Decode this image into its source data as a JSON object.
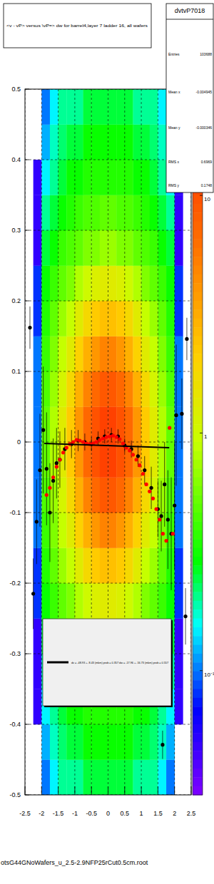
{
  "chart_data": {
    "type": "heatmap",
    "title": "<v - vP>       versus  \\vP=> dw for barrel4,layer 7 ladder 16, all wafers",
    "xlim": [
      -2.5,
      2.5
    ],
    "xticks": [
      -2.5,
      -2,
      -1.5,
      -1,
      -0.5,
      0,
      0.5,
      1,
      1.5,
      2,
      2.5
    ],
    "ylim": [
      -0.5,
      0.5
    ],
    "yticks": [
      -0.5,
      -0.4,
      -0.3,
      -0.2,
      -0.1,
      0,
      0.1,
      0.2,
      0.3,
      0.4,
      0.5
    ],
    "grid": true,
    "legend": "bottom",
    "heatmap": {
      "xbins": [
        -2.5,
        -2.25,
        -2,
        -1.75,
        -1.5,
        -1.25,
        -1,
        -0.75,
        -0.5,
        -0.25,
        0,
        0.25,
        0.5,
        0.75,
        1,
        1.25,
        1.5,
        1.75,
        2,
        2.25,
        2.5
      ],
      "ybins": [
        -0.5,
        -0.45,
        -0.4,
        -0.35,
        -0.3,
        -0.25,
        -0.2,
        -0.15,
        -0.1,
        -0.05,
        0,
        0.05,
        0.1,
        0.15,
        0.2,
        0.25,
        0.3,
        0.35,
        0.4,
        0.45,
        0.5
      ],
      "cells": [
        [
          0,
          0,
          0.1,
          0.15,
          0.2,
          0.2,
          0.2,
          0.25,
          0.25,
          0.25,
          0.25,
          0.25,
          0.25,
          0.2,
          0.2,
          0.2,
          0.15,
          0.1,
          0,
          0
        ],
        [
          0,
          0,
          0.12,
          0.18,
          0.22,
          0.25,
          0.25,
          0.3,
          0.3,
          0.3,
          0.3,
          0.3,
          0.3,
          0.25,
          0.25,
          0.22,
          0.18,
          0.12,
          0,
          0
        ],
        [
          0,
          0.05,
          0.15,
          0.2,
          0.25,
          0.3,
          0.3,
          0.35,
          0.35,
          0.35,
          0.35,
          0.35,
          0.35,
          0.3,
          0.3,
          0.25,
          0.2,
          0.15,
          0.05,
          0
        ],
        [
          0,
          0.05,
          0.2,
          0.25,
          0.3,
          0.35,
          0.4,
          0.45,
          0.45,
          0.5,
          0.5,
          0.45,
          0.45,
          0.4,
          0.35,
          0.3,
          0.25,
          0.2,
          0.05,
          0
        ],
        [
          0,
          0.05,
          0.25,
          0.3,
          0.4,
          0.45,
          0.5,
          0.6,
          0.6,
          0.7,
          0.7,
          0.6,
          0.6,
          0.5,
          0.45,
          0.4,
          0.3,
          0.25,
          0.05,
          0
        ],
        [
          0,
          0.08,
          0.3,
          0.4,
          0.5,
          0.6,
          0.8,
          1,
          1.2,
          1.3,
          1.3,
          1.2,
          1,
          0.8,
          0.6,
          0.5,
          0.4,
          0.3,
          0.08,
          0
        ],
        [
          0,
          0.08,
          0.35,
          0.5,
          0.7,
          0.9,
          1.3,
          1.8,
          2.2,
          2.5,
          2.5,
          2.2,
          1.8,
          1.3,
          0.9,
          0.7,
          0.5,
          0.35,
          0.08,
          0
        ],
        [
          0,
          0.1,
          0.4,
          0.6,
          0.9,
          1.3,
          2,
          3,
          4,
          5,
          5,
          4,
          3,
          2,
          1.3,
          0.9,
          0.6,
          0.4,
          0.1,
          0
        ],
        [
          0,
          0.1,
          0.45,
          0.7,
          1.1,
          1.8,
          3,
          5,
          7,
          9,
          9,
          7,
          5,
          3,
          1.8,
          1.1,
          0.7,
          0.45,
          0.1,
          0
        ],
        [
          0,
          0.1,
          0.5,
          0.8,
          1.3,
          2.2,
          4,
          7,
          10,
          13,
          13,
          10,
          7,
          4,
          2.2,
          1.3,
          0.8,
          0.5,
          0.1,
          0
        ],
        [
          0,
          0.1,
          0.5,
          0.8,
          1.3,
          2.2,
          4,
          7,
          10,
          13,
          13,
          10,
          7,
          4,
          2.2,
          1.3,
          0.8,
          0.5,
          0.1,
          0
        ],
        [
          0,
          0.1,
          0.45,
          0.7,
          1.1,
          1.8,
          3,
          5,
          7,
          9,
          9,
          7,
          5,
          3,
          1.8,
          1.1,
          0.7,
          0.45,
          0.1,
          0
        ],
        [
          0,
          0.1,
          0.4,
          0.6,
          0.9,
          1.3,
          2,
          3,
          4,
          5,
          5,
          4,
          3,
          2,
          1.3,
          0.9,
          0.6,
          0.4,
          0.1,
          0
        ],
        [
          0,
          0.08,
          0.35,
          0.5,
          0.7,
          0.9,
          1.3,
          1.8,
          2.2,
          2.5,
          2.5,
          2.2,
          1.8,
          1.3,
          0.9,
          0.7,
          0.5,
          0.35,
          0.08,
          0
        ],
        [
          0,
          0.08,
          0.3,
          0.4,
          0.5,
          0.6,
          0.8,
          1,
          1.2,
          1.3,
          1.3,
          1.2,
          1,
          0.8,
          0.6,
          0.5,
          0.4,
          0.3,
          0.08,
          0
        ],
        [
          0,
          0.05,
          0.25,
          0.3,
          0.4,
          0.45,
          0.5,
          0.6,
          0.6,
          0.7,
          0.7,
          0.6,
          0.6,
          0.5,
          0.45,
          0.4,
          0.3,
          0.25,
          0.05,
          0
        ],
        [
          0,
          0.05,
          0.2,
          0.25,
          0.3,
          0.35,
          0.4,
          0.45,
          0.45,
          0.5,
          0.5,
          0.45,
          0.45,
          0.4,
          0.35,
          0.3,
          0.25,
          0.2,
          0.05,
          0
        ],
        [
          0,
          0.05,
          0.15,
          0.2,
          0.25,
          0.3,
          0.3,
          0.35,
          0.35,
          0.35,
          0.35,
          0.35,
          0.35,
          0.3,
          0.3,
          0.25,
          0.2,
          0.15,
          0.05,
          0
        ],
        [
          0,
          0,
          0.12,
          0.18,
          0.22,
          0.25,
          0.25,
          0.3,
          0.3,
          0.3,
          0.3,
          0.3,
          0.3,
          0.25,
          0.25,
          0.22,
          0.18,
          0.12,
          0,
          0
        ],
        [
          0,
          0,
          0.1,
          0.15,
          0.2,
          0.2,
          0.2,
          0.25,
          0.25,
          0.25,
          0.25,
          0.25,
          0.25,
          0.2,
          0.2,
          0.2,
          0.15,
          0.1,
          0,
          0
        ]
      ],
      "zlim": [
        0.03,
        28
      ],
      "zticks": [
        {
          "value": 0.1,
          "label": "10⁻¹"
        },
        1,
        10
      ]
    },
    "series": [
      {
        "type": "scatter",
        "color": "#000000",
        "marker": "circle",
        "x": [
          -2.35,
          -2.25,
          -2.15,
          -2.05,
          -1.95,
          -1.85,
          -1.75,
          -1.65,
          -1.55,
          -1.45,
          -1.3,
          -1.1,
          -0.9,
          -0.7,
          -0.5,
          -0.3,
          -0.1,
          0.1,
          0.3,
          0.5,
          0.7,
          0.9,
          1.1,
          1.3,
          1.5,
          1.6,
          1.64,
          1.7,
          1.8,
          1.9,
          2.0,
          2.05,
          2.22,
          2.33,
          2.37
        ],
        "values": [
          0.162,
          -0.215,
          -0.113,
          -0.04,
          0.017,
          -0.038,
          -0.1,
          -0.055,
          -0.03,
          -0.025,
          -0.01,
          -0.003,
          0.002,
          0,
          -0.003,
          0.005,
          0.008,
          0.01,
          0.008,
          -0.005,
          -0.01,
          -0.02,
          -0.04,
          -0.065,
          -0.095,
          -0.105,
          -0.429,
          -0.06,
          -0.11,
          -0.13,
          -0.09,
          0.038,
          0.04,
          -0.247,
          0.146
        ],
        "errors": [
          0.03,
          0.05,
          0.06,
          0.08,
          0.09,
          0.08,
          0.07,
          0.06,
          0.05,
          0.04,
          0.03,
          0.02,
          0.015,
          0.012,
          0.01,
          0.01,
          0.01,
          0.01,
          0.01,
          0.01,
          0.012,
          0.015,
          0.02,
          0.03,
          0.04,
          0.05,
          0.02,
          0.06,
          0.07,
          0.08,
          0.09,
          0.1,
          0.05,
          0.04,
          0.03
        ]
      },
      {
        "type": "scatter",
        "color": "#ff0000",
        "marker": "circle",
        "x": [
          -1.85,
          -1.75,
          -1.65,
          -1.55,
          -1.45,
          -1.35,
          -1.25,
          -1.15,
          -1.05,
          -0.95,
          -0.85,
          -0.75,
          -0.65,
          -0.55,
          -0.45,
          -0.35,
          -0.25,
          -0.15,
          -0.05,
          0.05,
          0.15,
          0.25,
          0.35,
          0.45,
          0.55,
          0.65,
          0.75,
          0.85,
          0.95,
          1.05,
          1.15,
          1.25,
          1.35,
          1.45,
          1.55,
          1.65,
          1.75,
          1.85,
          1.95
        ],
        "values": [
          -0.075,
          -0.065,
          -0.05,
          -0.035,
          -0.025,
          -0.015,
          -0.008,
          -0.003,
          0,
          0.003,
          0.002,
          0,
          -0.002,
          -0.003,
          -0.002,
          0,
          0.003,
          0.005,
          0.007,
          0.008,
          0.009,
          0.007,
          0.004,
          -0.002,
          -0.008,
          -0.012,
          -0.018,
          -0.025,
          -0.033,
          -0.045,
          -0.06,
          -0.07,
          -0.08,
          -0.095,
          -0.11,
          -0.13,
          -0.14,
          0.02,
          -0.13
        ]
      },
      {
        "type": "line",
        "color": "#000000",
        "line_style": "solid",
        "name": "dv = -48.93 +- 8.43 (mkm) prob = 0.357 dw = -17.96 +- 16.73 (mkm) prob = 0.557",
        "x": [
          -1.92,
          1.84
        ],
        "values": [
          -0.002,
          -0.008
        ]
      }
    ],
    "stats": {
      "title": "dvtvP7018",
      "rows": [
        {
          "label": "Entries",
          "value": 103688
        },
        {
          "label": "Mean x",
          "value": -0.004945
        },
        {
          "label": "Mean y",
          "value": -0.000346
        },
        {
          "label": "RMS x",
          "value": 0.6969
        },
        {
          "label": "RMS y",
          "value": 0.1748
        }
      ]
    },
    "footer": "otsG44GNoWafers_u_2.5-2.9NFP25rCut0.5cm.root"
  }
}
